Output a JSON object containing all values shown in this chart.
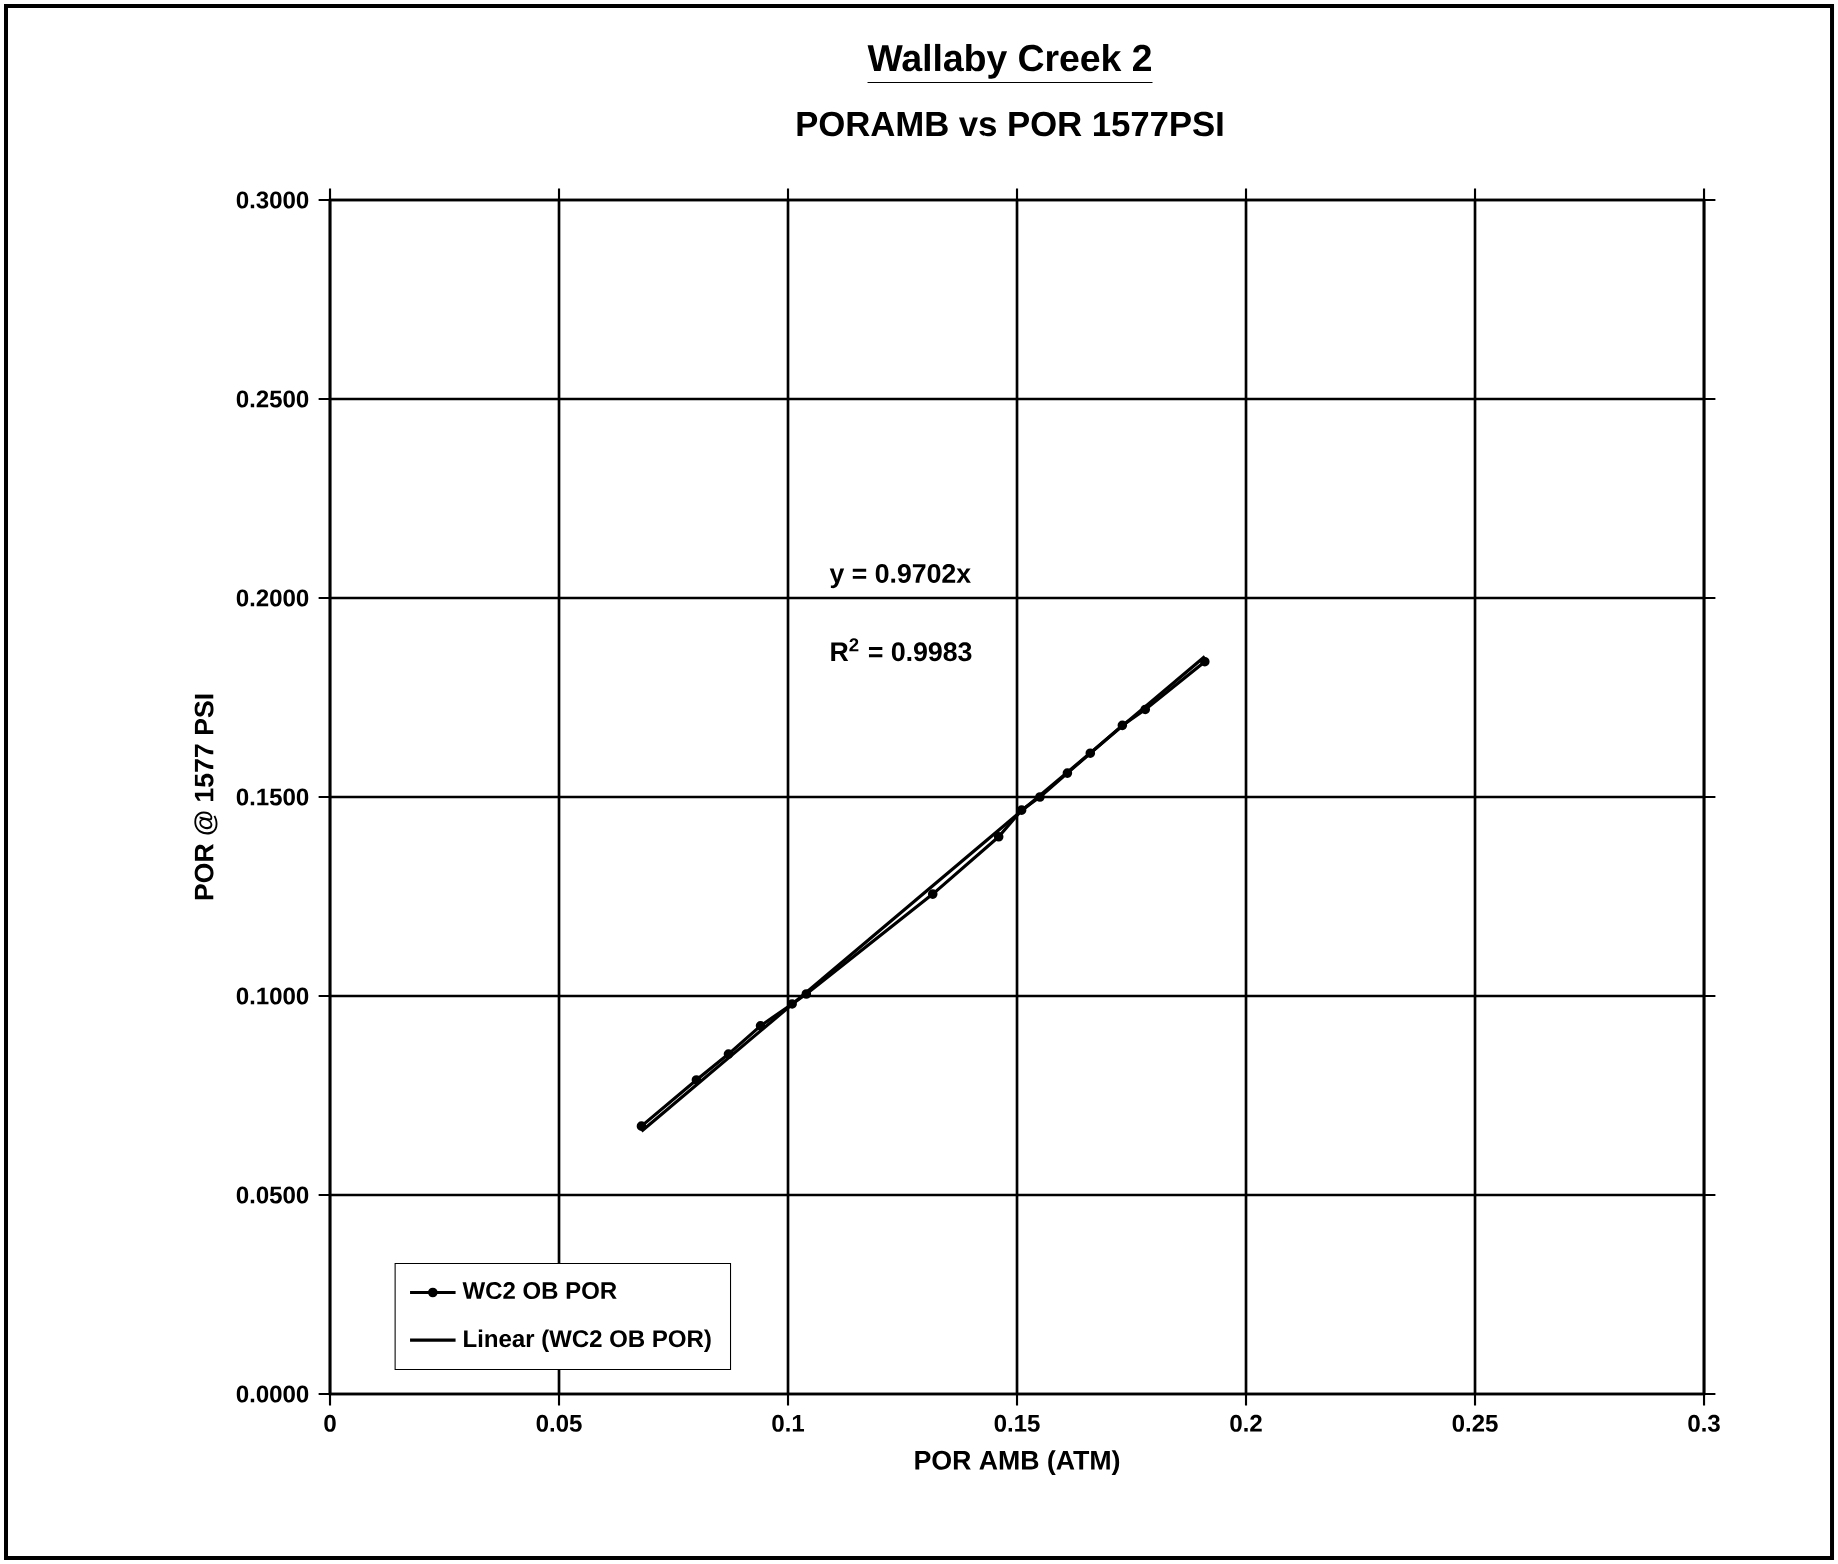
{
  "chart_data": {
    "type": "line",
    "title": "Wallaby Creek 2",
    "subtitle": "PORAMB vs POR 1577PSI",
    "xlabel": "POR AMB (ATM)",
    "ylabel": "POR @ 1577 PSI",
    "series": [
      {
        "name": "WC2 OB POR",
        "color": "#000000",
        "marker": "circle",
        "x": [
          0.068,
          0.08,
          0.087,
          0.094,
          0.1009,
          0.104,
          0.1316,
          0.146,
          0.151,
          0.155,
          0.161,
          0.166,
          0.173,
          0.178,
          0.191
        ],
        "values": [
          0.0673,
          0.0789,
          0.0854,
          0.0925,
          0.098,
          0.1005,
          0.1256,
          0.14,
          0.1467,
          0.15,
          0.156,
          0.161,
          0.168,
          0.172,
          0.184
        ]
      },
      {
        "name": "Linear (WC2 OB POR)",
        "color": "#000000",
        "marker": "none",
        "x": [
          0.068,
          0.191
        ],
        "values": [
          0.066,
          0.1853
        ]
      }
    ],
    "annotations": [
      "y = 0.9702x",
      "R$^{2}$ = 0.9983"
    ],
    "xlim": [
      0,
      0.3
    ],
    "ylim": [
      0,
      0.3
    ],
    "xticks": [
      0,
      0.05,
      0.1,
      0.15,
      0.2,
      0.25,
      0.3
    ],
    "yticks": [
      {
        "value": 0,
        "label": "0.0000"
      },
      {
        "value": 0.05,
        "label": "0.0500"
      },
      {
        "value": 0.1,
        "label": "0.1000"
      },
      {
        "value": 0.15,
        "label": "0.1500"
      },
      {
        "value": 0.2,
        "label": "0.2000"
      },
      {
        "value": 0.25,
        "label": "0.2500"
      },
      {
        "value": 0.3,
        "label": "0.3000"
      }
    ],
    "grid": true,
    "legend": "bottom left"
  }
}
